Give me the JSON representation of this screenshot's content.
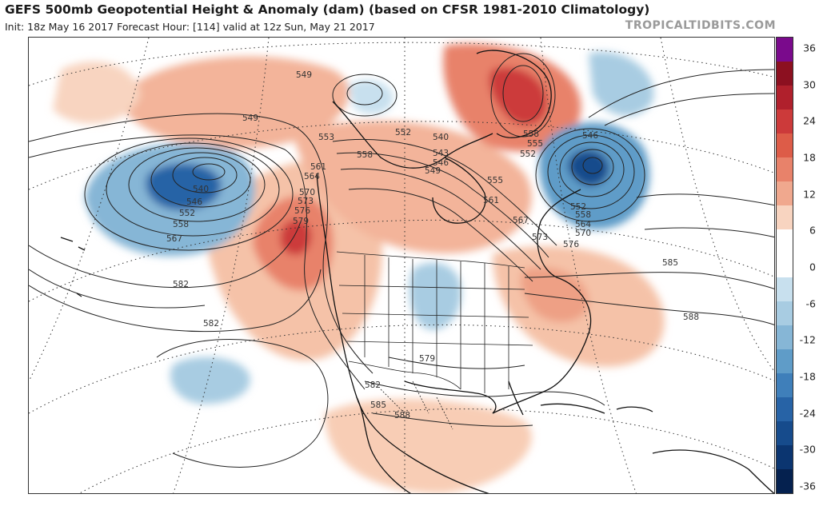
{
  "header": {
    "title": "GEFS 500mb Geopotential Height & Anomaly (dam) (based on CFSR 1981-2010 Climatology)",
    "subtitle": "Init: 18z May 16 2017   Forecast Hour: [114]   valid at 12z Sun, May 21 2017",
    "brand": "TROPICALTIDBITS.COM"
  },
  "colorbar": {
    "labels": [
      "36",
      "30",
      "24",
      "18",
      "12",
      "6",
      "0",
      "-6",
      "-12",
      "-18",
      "-24",
      "-30",
      "-36"
    ],
    "colors": [
      "#7a0a8c",
      "#8c1020",
      "#b0202c",
      "#cc3a3a",
      "#dd5c48",
      "#e8826a",
      "#f0a88e",
      "#f8d4c0",
      "#ffffff",
      "#ffffff",
      "#c8e0ee",
      "#a8cce2",
      "#86b6d6",
      "#5f9cc8",
      "#3f7fba",
      "#2763a6",
      "#164b8c",
      "#0b3570",
      "#05214f"
    ]
  },
  "map": {
    "contour_labels": [
      "549",
      "549",
      "553",
      "558",
      "561",
      "564",
      "570",
      "573",
      "576",
      "579",
      "540",
      "546",
      "552",
      "558",
      "567",
      "582",
      "582",
      "540",
      "543",
      "546",
      "549",
      "552",
      "555",
      "561",
      "558",
      "555",
      "552",
      "546",
      "552",
      "558",
      "564",
      "570",
      "567",
      "573",
      "576",
      "585",
      "588",
      "579",
      "582",
      "585",
      "588"
    ]
  }
}
